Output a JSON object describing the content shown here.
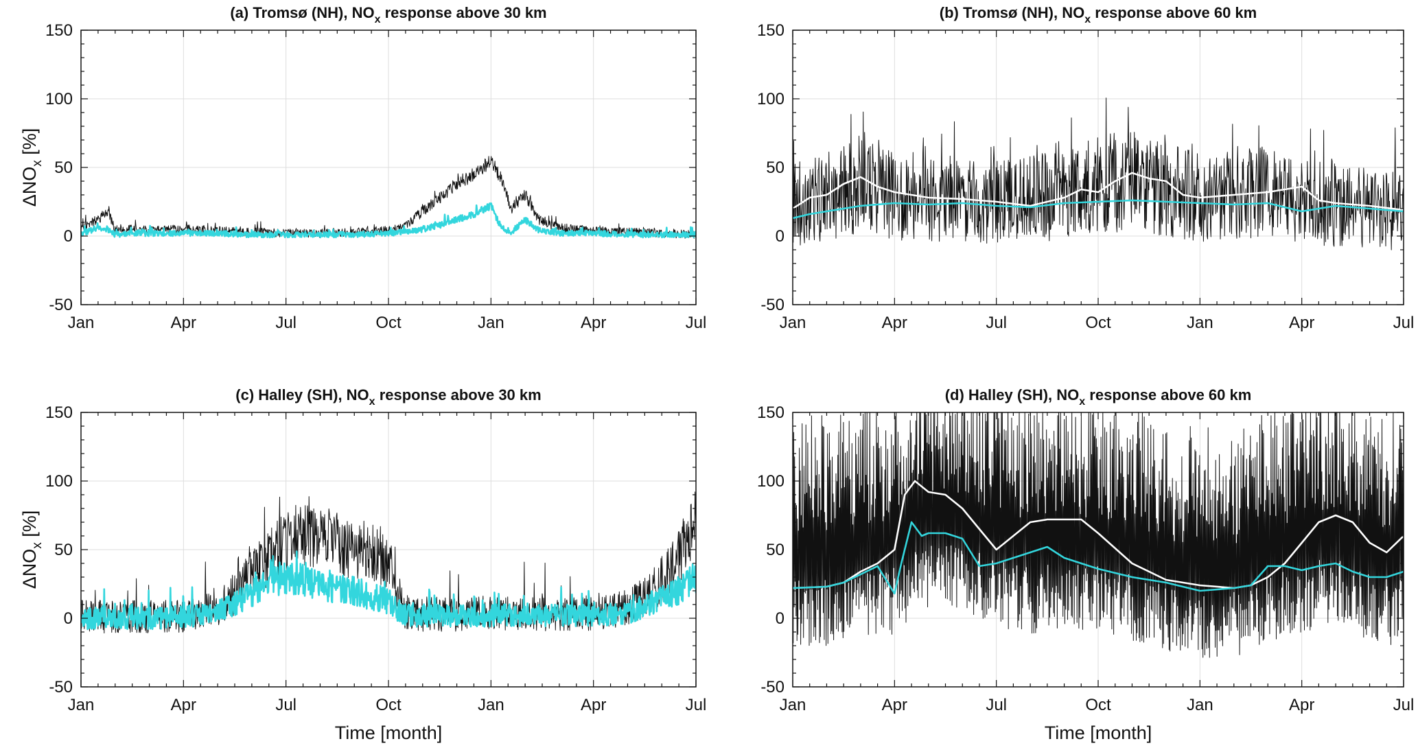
{
  "figure": {
    "x_tick_labels": [
      "Jan",
      "Apr",
      "Jul",
      "Oct",
      "Jan",
      "Apr",
      "Jul"
    ],
    "y_tick_labels": [
      "150",
      "100",
      "50",
      "0",
      "-50"
    ],
    "x_axis_label": "Time [month]",
    "y_axis_label": {
      "prefix": "ΔNO",
      "sub": "x",
      "suffix": " [%]"
    },
    "colors": {
      "raw": "#111111",
      "mean": "#ffffff",
      "filtered": "#33d6dd",
      "grid": "#dddddd"
    }
  },
  "chart_data": [
    {
      "type": "line",
      "panel": "a",
      "title": {
        "prefix": "(a) Tromsø (NH), NO",
        "sub": "x",
        "suffix": " response above 30 km"
      },
      "xlabel": "",
      "ylabel": "ΔNOx [%]",
      "ylim": [
        -50,
        150
      ],
      "xlim_months": [
        0,
        18
      ],
      "grid": true,
      "series": [
        {
          "role": "raw",
          "color": "#111111",
          "x": [
            0,
            0.5,
            0.8,
            1,
            1.5,
            2,
            3,
            4,
            5,
            6,
            7,
            8,
            9,
            9.5,
            10,
            10.5,
            11,
            11.5,
            12,
            12.3,
            12.6,
            13,
            13.4,
            13.7,
            14,
            15,
            16,
            17,
            18
          ],
          "y": [
            6,
            12,
            18,
            4,
            5,
            4,
            5,
            4,
            3,
            2,
            2,
            3,
            4,
            7,
            18,
            28,
            38,
            45,
            55,
            42,
            20,
            30,
            12,
            8,
            6,
            4,
            3,
            2,
            1
          ],
          "noise": 3
        },
        {
          "role": "filtered",
          "color": "#33d6dd",
          "x": [
            0,
            0.5,
            0.8,
            1,
            1.5,
            2,
            3,
            4,
            5,
            6,
            7,
            8,
            9,
            9.5,
            10,
            10.5,
            11,
            11.5,
            12,
            12.3,
            12.6,
            13,
            13.4,
            13.7,
            14,
            15,
            16,
            17,
            18
          ],
          "y": [
            2,
            6,
            4,
            1,
            2,
            2,
            2,
            2,
            1,
            1,
            1,
            1,
            2,
            3,
            5,
            8,
            12,
            16,
            22,
            6,
            3,
            12,
            4,
            3,
            2,
            2,
            1,
            1,
            1
          ],
          "noise": 2
        }
      ]
    },
    {
      "type": "line",
      "panel": "b",
      "title": {
        "prefix": "(b) Tromsø (NH), NO",
        "sub": "x",
        "suffix": " response above 60 km"
      },
      "xlabel": "",
      "ylabel": "",
      "ylim": [
        -50,
        150
      ],
      "xlim_months": [
        0,
        18
      ],
      "grid": true,
      "series": [
        {
          "role": "raw",
          "color": "#111111",
          "x": [
            0,
            1,
            2,
            3,
            4,
            5,
            6,
            7,
            8,
            9,
            10,
            11,
            12,
            13,
            14,
            15,
            16,
            17,
            18
          ],
          "y": [
            22,
            30,
            36,
            30,
            28,
            26,
            24,
            27,
            30,
            38,
            40,
            34,
            28,
            30,
            32,
            25,
            22,
            20,
            18
          ],
          "noise": 22
        },
        {
          "role": "mean",
          "color": "#ffffff",
          "x": [
            0,
            0.5,
            1,
            1.5,
            2,
            2.5,
            3,
            4,
            5,
            6,
            7,
            8,
            8.5,
            9,
            9.5,
            10,
            10.5,
            11,
            11.5,
            12,
            13,
            14,
            15,
            15.5,
            16,
            17,
            18
          ],
          "y": [
            20,
            28,
            30,
            38,
            43,
            36,
            32,
            28,
            27,
            25,
            22,
            28,
            34,
            32,
            40,
            46,
            42,
            40,
            30,
            28,
            30,
            32,
            36,
            26,
            24,
            22,
            19
          ]
        },
        {
          "role": "filtered",
          "color": "#33d6dd",
          "x": [
            0,
            0.5,
            1,
            2,
            3,
            4,
            5,
            6,
            7,
            8,
            9,
            10,
            11,
            12,
            13,
            14,
            15,
            16,
            17,
            18
          ],
          "y": [
            13,
            16,
            18,
            22,
            24,
            23,
            24,
            22,
            21,
            24,
            25,
            26,
            25,
            24,
            23,
            24,
            18,
            22,
            20,
            18
          ]
        }
      ]
    },
    {
      "type": "line",
      "panel": "c",
      "title": {
        "prefix": "(c) Halley (SH), NO",
        "sub": "x",
        "suffix": " response above 30 km"
      },
      "xlabel": "Time [month]",
      "ylabel": "ΔNOx [%]",
      "ylim": [
        -50,
        150
      ],
      "xlim_months": [
        0,
        18
      ],
      "grid": true,
      "series": [
        {
          "role": "raw",
          "color": "#111111",
          "x": [
            0,
            2,
            3,
            3.5,
            4,
            4.5,
            5,
            5.5,
            6,
            6.5,
            7,
            7.5,
            8,
            8.5,
            9,
            9.2,
            9.5,
            10,
            12,
            14,
            15,
            16,
            16.5,
            17,
            17.5,
            18
          ],
          "y": [
            1,
            1,
            2,
            4,
            8,
            18,
            32,
            45,
            55,
            62,
            58,
            55,
            50,
            48,
            40,
            28,
            4,
            3,
            3,
            3,
            4,
            8,
            15,
            28,
            45,
            68
          ],
          "noise": 12
        },
        {
          "role": "filtered",
          "color": "#33d6dd",
          "x": [
            0,
            2,
            3,
            3.5,
            4,
            4.5,
            5,
            5.5,
            6,
            6.5,
            7,
            7.5,
            8,
            8.5,
            9,
            9.2,
            9.5,
            10,
            12,
            14,
            15,
            16,
            16.5,
            17,
            17.5,
            18
          ],
          "y": [
            0,
            0,
            1,
            2,
            5,
            10,
            18,
            25,
            30,
            28,
            24,
            22,
            20,
            16,
            12,
            8,
            2,
            2,
            2,
            2,
            2,
            4,
            8,
            14,
            20,
            30
          ],
          "noise": 8
        }
      ]
    },
    {
      "type": "line",
      "panel": "d",
      "title": {
        "prefix": "(d) Halley (SH), NO",
        "sub": "x",
        "suffix": " response above 60 km"
      },
      "xlabel": "Time [month]",
      "ylabel": "",
      "ylim": [
        -50,
        150
      ],
      "xlim_months": [
        0,
        18
      ],
      "grid": true,
      "series": [
        {
          "role": "raw",
          "color": "#111111",
          "x": [
            0,
            1,
            2,
            3,
            4,
            5,
            6,
            7,
            8,
            9,
            10,
            11,
            12,
            13,
            14,
            15,
            16,
            17,
            18
          ],
          "y": [
            50,
            50,
            55,
            60,
            80,
            75,
            65,
            60,
            65,
            60,
            55,
            45,
            40,
            42,
            55,
            60,
            70,
            55,
            50
          ],
          "noise": 55
        },
        {
          "role": "mean",
          "color": "#ffffff",
          "x": [
            0,
            1,
            1.5,
            2,
            2.5,
            3,
            3.3,
            3.6,
            4,
            4.5,
            5,
            5.5,
            6,
            6.5,
            7,
            7.5,
            8,
            8.5,
            9,
            10,
            11,
            12,
            13,
            13.5,
            14,
            14.5,
            15,
            15.5,
            16,
            16.5,
            17,
            17.5,
            18
          ],
          "y": [
            22,
            23,
            26,
            34,
            40,
            50,
            90,
            100,
            92,
            90,
            80,
            65,
            50,
            60,
            70,
            72,
            72,
            72,
            62,
            40,
            28,
            24,
            22,
            24,
            30,
            40,
            55,
            70,
            75,
            70,
            55,
            48,
            60
          ]
        },
        {
          "role": "filtered",
          "color": "#33d6dd",
          "x": [
            0,
            1,
            1.5,
            2,
            2.5,
            3,
            3.2,
            3.5,
            3.8,
            4,
            4.5,
            5,
            5.5,
            6,
            6.5,
            7,
            7.5,
            8,
            8.5,
            9,
            10,
            11,
            12,
            13,
            13.5,
            14,
            14.5,
            15,
            15.5,
            16,
            16.5,
            17,
            17.5,
            18
          ],
          "y": [
            22,
            23,
            26,
            32,
            38,
            18,
            40,
            70,
            60,
            62,
            62,
            58,
            38,
            40,
            44,
            48,
            52,
            44,
            40,
            36,
            30,
            26,
            20,
            22,
            24,
            38,
            38,
            35,
            38,
            40,
            34,
            30,
            30,
            34
          ]
        }
      ]
    }
  ]
}
